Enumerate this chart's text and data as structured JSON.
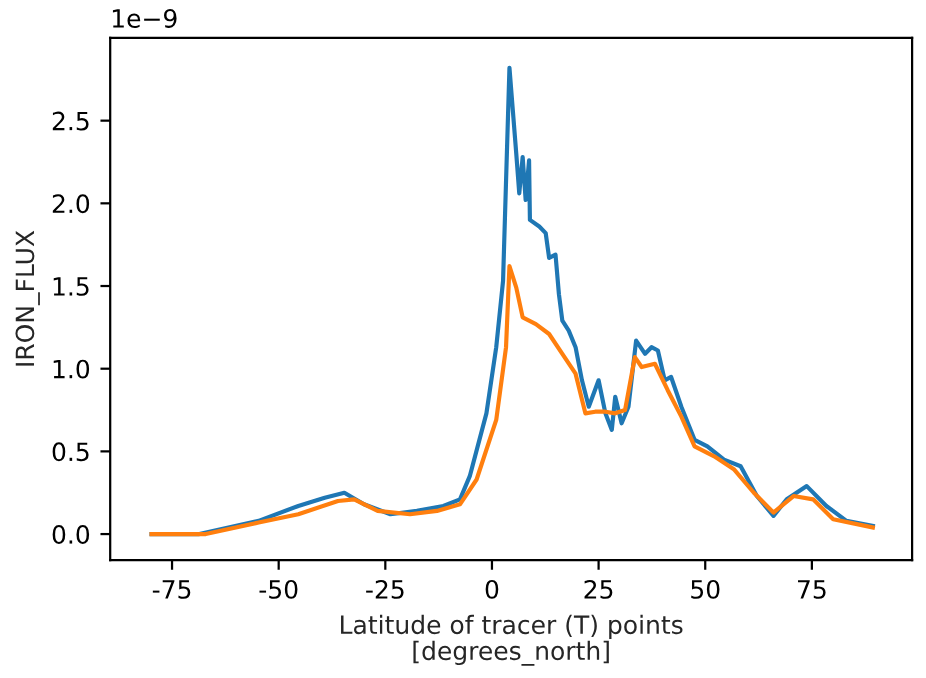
{
  "chart_data": {
    "type": "line",
    "xlabel": "Latitude of tracer (T) points\n[degrees_north]",
    "ylabel": "IRON_FLUX",
    "annotations": [
      "1e−9"
    ],
    "xlim": [
      -89.5,
      98.5
    ],
    "xticks": [
      -75,
      -50,
      -25,
      0,
      25,
      50,
      75
    ],
    "ylim": [
      -0.157,
      3.0
    ],
    "yticks": [
      {
        "value": 0,
        "label": "0.0"
      },
      {
        "value": 0.5,
        "label": "0.5"
      },
      {
        "value": 1,
        "label": "1.0"
      },
      {
        "value": 1.5,
        "label": "1.5"
      },
      {
        "value": 2,
        "label": "2.0"
      },
      {
        "value": 2.5,
        "label": "2.5"
      }
    ],
    "grid": false,
    "marker": "none",
    "line_style": "solid",
    "series": [
      {
        "color": "#1f77b4",
        "x": [
          -79.8,
          -68.6,
          -54.7,
          -45.4,
          -39.2,
          -34.6,
          -30,
          -23.8,
          -17.6,
          -11.4,
          -7.5,
          -5.2,
          -1.3,
          1.0,
          2.6,
          4.1,
          5.7,
          6.4,
          7.2,
          7.9,
          8.7,
          8.9,
          11.1,
          12.6,
          13.4,
          14.9,
          15.7,
          16.5,
          18.0,
          19.6,
          21.1,
          22.7,
          25.0,
          26.6,
          28.1,
          28.9,
          30.4,
          32.0,
          33.8,
          35.9,
          37.4,
          38.9,
          40.5,
          42.0,
          44.4,
          47.5,
          50.5,
          54.4,
          58.3,
          62.1,
          66.0,
          69.1,
          73.8,
          78.4,
          83.1,
          89.3
        ],
        "values": [
          0.0,
          0.0,
          0.08,
          0.17,
          0.22,
          0.25,
          0.18,
          0.12,
          0.14,
          0.17,
          0.21,
          0.35,
          0.73,
          1.13,
          1.53,
          2.82,
          2.3,
          2.06,
          2.28,
          2.02,
          2.26,
          1.9,
          1.86,
          1.82,
          1.67,
          1.69,
          1.45,
          1.29,
          1.23,
          1.13,
          0.93,
          0.77,
          0.93,
          0.73,
          0.63,
          0.83,
          0.67,
          0.77,
          1.17,
          1.09,
          1.13,
          1.11,
          0.93,
          0.95,
          0.77,
          0.57,
          0.53,
          0.45,
          0.41,
          0.23,
          0.11,
          0.21,
          0.29,
          0.17,
          0.08,
          0.05
        ]
      },
      {
        "color": "#ff7f0e",
        "x": [
          -79.8,
          -67.1,
          -54.7,
          -45.4,
          -36.1,
          -32.3,
          -26.8,
          -19.2,
          -12.9,
          -7.5,
          -3.6,
          1.0,
          3.3,
          4.1,
          5.7,
          7.2,
          10.3,
          13.4,
          16.5,
          19.6,
          21.9,
          24.2,
          26.6,
          28.9,
          31.2,
          33.5,
          35.1,
          38.2,
          41.2,
          44.4,
          47.5,
          52.1,
          56.8,
          61.4,
          66.0,
          70.7,
          75.3,
          80.0,
          89.3
        ],
        "values": [
          0.0,
          0.0,
          0.07,
          0.12,
          0.2,
          0.21,
          0.14,
          0.12,
          0.14,
          0.18,
          0.33,
          0.69,
          1.13,
          1.62,
          1.49,
          1.31,
          1.27,
          1.21,
          1.09,
          0.97,
          0.73,
          0.74,
          0.74,
          0.73,
          0.75,
          1.07,
          1.01,
          1.03,
          0.87,
          0.71,
          0.53,
          0.47,
          0.39,
          0.25,
          0.13,
          0.23,
          0.21,
          0.09,
          0.04
        ]
      }
    ]
  }
}
